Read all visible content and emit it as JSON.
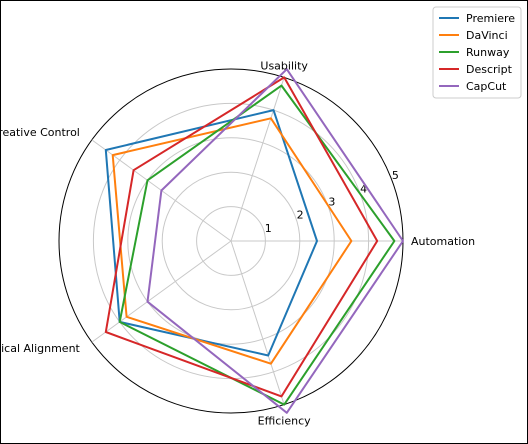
{
  "chart_data": {
    "type": "radar",
    "axes": [
      "Automation",
      "Usability",
      "Creative Control",
      "Pedagogical Alignment",
      "Efficiency"
    ],
    "rticks": [
      1,
      2,
      3,
      4,
      5
    ],
    "rlim": [
      0,
      5
    ],
    "legend_position": "top-right",
    "series": [
      {
        "name": "Premiere",
        "color": "#1f77b4",
        "values": [
          2.5,
          4.0,
          4.5,
          4.0,
          3.5
        ]
      },
      {
        "name": "DaVinci",
        "color": "#ff7f0e",
        "values": [
          3.5,
          3.75,
          4.25,
          3.75,
          3.75
        ]
      },
      {
        "name": "Runway",
        "color": "#2ca02c",
        "values": [
          4.75,
          4.75,
          3.0,
          4.0,
          5.0
        ]
      },
      {
        "name": "Descript",
        "color": "#d62728",
        "values": [
          4.25,
          5.0,
          3.5,
          4.5,
          4.75
        ]
      },
      {
        "name": "CapCut",
        "color": "#9467bd",
        "values": [
          5.0,
          5.25,
          2.5,
          3.0,
          5.25
        ]
      }
    ]
  }
}
